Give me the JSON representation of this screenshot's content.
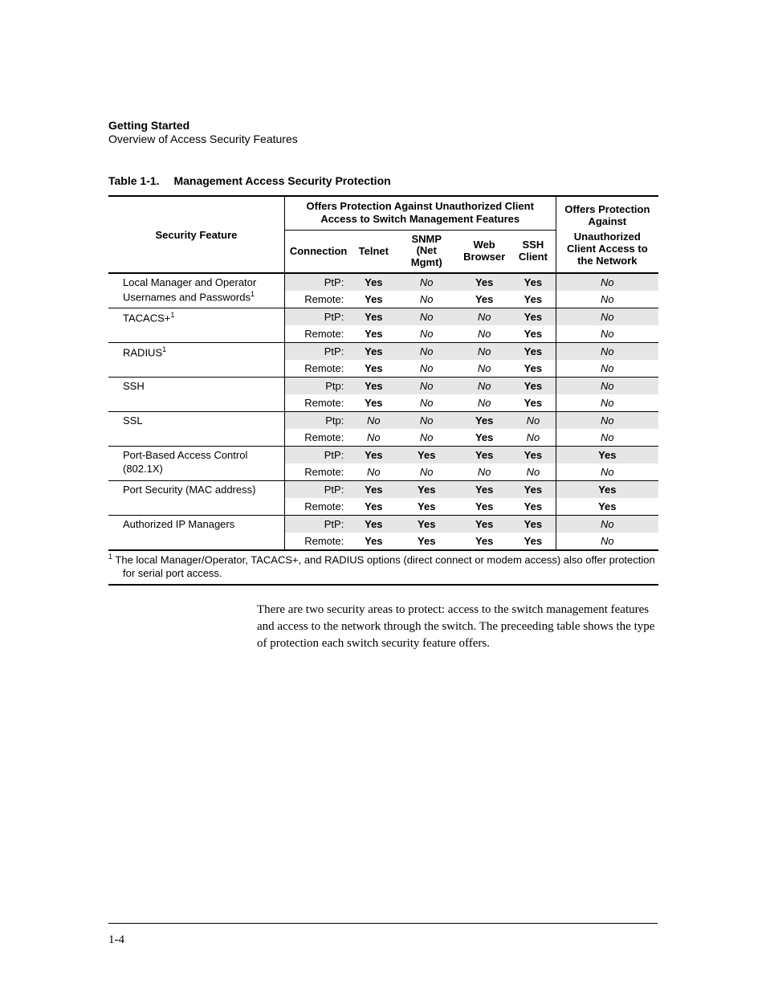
{
  "header": {
    "title": "Getting Started",
    "subtitle": "Overview of Access Security Features"
  },
  "table": {
    "caption_label": "Table 1-1.",
    "caption_text": "Management Access Security Protection",
    "head": {
      "security_feature": "Security Feature",
      "offers_protection_mgmt": "Offers Protection Against Unauthorized Client Access to Switch Management Features",
      "offers_protection_net": "Offers Protection Against",
      "connection": "Connection",
      "telnet": "Telnet",
      "snmp": "SNMP (Net Mgmt)",
      "web": "Web Browser",
      "ssh": "SSH Client",
      "net_access": "Unauthorized Client Access to the Network"
    },
    "features": [
      {
        "name": "Local Manager and Operator Usernames and Passwords",
        "sup": "1",
        "rows": [
          {
            "conn": "PtP:",
            "telnet": "Yes",
            "snmp": "No",
            "web": "Yes",
            "ssh": "Yes",
            "net": "No"
          },
          {
            "conn": "Remote:",
            "telnet": "Yes",
            "snmp": "No",
            "web": "Yes",
            "ssh": "Yes",
            "net": "No"
          }
        ]
      },
      {
        "name": "TACACS+",
        "sup": "1",
        "rows": [
          {
            "conn": "PtP:",
            "telnet": "Yes",
            "snmp": "No",
            "web": "No",
            "ssh": "Yes",
            "net": "No"
          },
          {
            "conn": "Remote:",
            "telnet": "Yes",
            "snmp": "No",
            "web": "No",
            "ssh": "Yes",
            "net": "No"
          }
        ]
      },
      {
        "name": "RADIUS",
        "sup": "1",
        "rows": [
          {
            "conn": "PtP:",
            "telnet": "Yes",
            "snmp": "No",
            "web": "No",
            "ssh": "Yes",
            "net": "No"
          },
          {
            "conn": "Remote:",
            "telnet": "Yes",
            "snmp": "No",
            "web": "No",
            "ssh": "Yes",
            "net": "No"
          }
        ]
      },
      {
        "name": "SSH",
        "sup": "",
        "rows": [
          {
            "conn": "Ptp:",
            "telnet": "Yes",
            "snmp": "No",
            "web": "No",
            "ssh": "Yes",
            "net": "No"
          },
          {
            "conn": "Remote:",
            "telnet": "Yes",
            "snmp": "No",
            "web": "No",
            "ssh": "Yes",
            "net": "No"
          }
        ]
      },
      {
        "name": "SSL",
        "sup": "",
        "rows": [
          {
            "conn": "Ptp:",
            "telnet": "No",
            "snmp": "No",
            "web": "Yes",
            "ssh": "No",
            "net": "No"
          },
          {
            "conn": "Remote:",
            "telnet": "No",
            "snmp": "No",
            "web": "Yes",
            "ssh": "No",
            "net": "No"
          }
        ]
      },
      {
        "name": "Port-Based Access Control (802.1X)",
        "sup": "",
        "rows": [
          {
            "conn": "PtP:",
            "telnet": "Yes",
            "snmp": "Yes",
            "web": "Yes",
            "ssh": "Yes",
            "net": "Yes"
          },
          {
            "conn": "Remote:",
            "telnet": "No",
            "snmp": "No",
            "web": "No",
            "ssh": "No",
            "net": "No"
          }
        ]
      },
      {
        "name": "Port Security (MAC address)",
        "sup": "",
        "rows": [
          {
            "conn": "PtP:",
            "telnet": "Yes",
            "snmp": "Yes",
            "web": "Yes",
            "ssh": "Yes",
            "net": "Yes"
          },
          {
            "conn": "Remote:",
            "telnet": "Yes",
            "snmp": "Yes",
            "web": "Yes",
            "ssh": "Yes",
            "net": "Yes"
          }
        ]
      },
      {
        "name": "Authorized IP Managers",
        "sup": "",
        "rows": [
          {
            "conn": "PtP:",
            "telnet": "Yes",
            "snmp": "Yes",
            "web": "Yes",
            "ssh": "Yes",
            "net": "No"
          },
          {
            "conn": "Remote:",
            "telnet": "Yes",
            "snmp": "Yes",
            "web": "Yes",
            "ssh": "Yes",
            "net": "No"
          }
        ]
      }
    ],
    "footnote_sup": "1",
    "footnote_line1": " The local Manager/Operator, TACACS+, and RADIUS options (direct connect or modem access) also offer protection",
    "footnote_line2": "for serial port access."
  },
  "paragraph": "There are two security areas to protect: access to the switch management features and access to the network through the switch. The preceeding table shows the type of protection each switch security feature offers.",
  "page_number": "1-4"
}
